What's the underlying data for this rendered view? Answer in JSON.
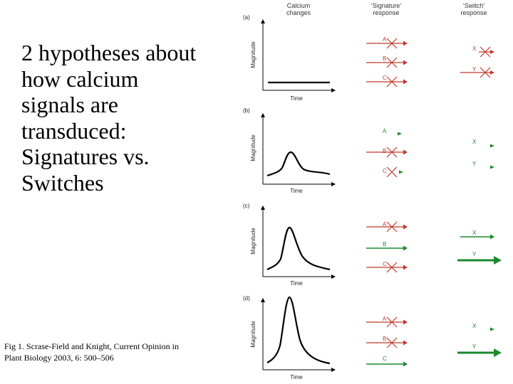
{
  "slide": {
    "title_lines": [
      "2 hypotheses about",
      "how calcium",
      "signals are",
      "transduced:",
      "Signatures vs.",
      "Switches"
    ],
    "caption_lines": [
      "Fig 1.  Scrase-Field and Knight, Current Opinion in",
      "Plant Biology 2003, 6: 500–506"
    ]
  },
  "figure": {
    "col_headers": {
      "calcium": [
        "Calcium",
        "changes"
      ],
      "signature": [
        "‘Signature’",
        "response"
      ],
      "switch": [
        "‘Switch’",
        "response"
      ]
    },
    "y_axis_label": "Magnitude",
    "x_axis_label": "Time",
    "panels": [
      {
        "label": "(a)",
        "signature": [
          {
            "name": "A",
            "state": "blocked"
          },
          {
            "name": "B",
            "state": "blocked"
          },
          {
            "name": "C",
            "state": "blocked"
          }
        ],
        "switch": [
          {
            "name": "X",
            "state": "blocked"
          },
          {
            "name": "Y",
            "state": "blocked"
          }
        ]
      },
      {
        "label": "(b)",
        "signature": [
          {
            "name": "A",
            "state": "weak"
          },
          {
            "name": "B",
            "state": "blocked"
          },
          {
            "name": "C",
            "state": "blocked"
          }
        ],
        "switch": [
          {
            "name": "X",
            "state": "weak"
          },
          {
            "name": "Y",
            "state": "weak"
          }
        ]
      },
      {
        "label": "(c)",
        "signature": [
          {
            "name": "A",
            "state": "blocked"
          },
          {
            "name": "B",
            "state": "active"
          },
          {
            "name": "C",
            "state": "blocked"
          }
        ],
        "switch": [
          {
            "name": "X",
            "state": "active"
          },
          {
            "name": "Y",
            "state": "strong"
          }
        ]
      },
      {
        "label": "(d)",
        "signature": [
          {
            "name": "A",
            "state": "blocked"
          },
          {
            "name": "B",
            "state": "blocked"
          },
          {
            "name": "C",
            "state": "active"
          }
        ],
        "switch": [
          {
            "name": "X",
            "state": "weak"
          },
          {
            "name": "Y",
            "state": "strong"
          }
        ]
      }
    ],
    "colors": {
      "blocked": "#c0392b",
      "active": "#1a8a2e",
      "axis": "#000000",
      "curve": "#000000"
    }
  }
}
